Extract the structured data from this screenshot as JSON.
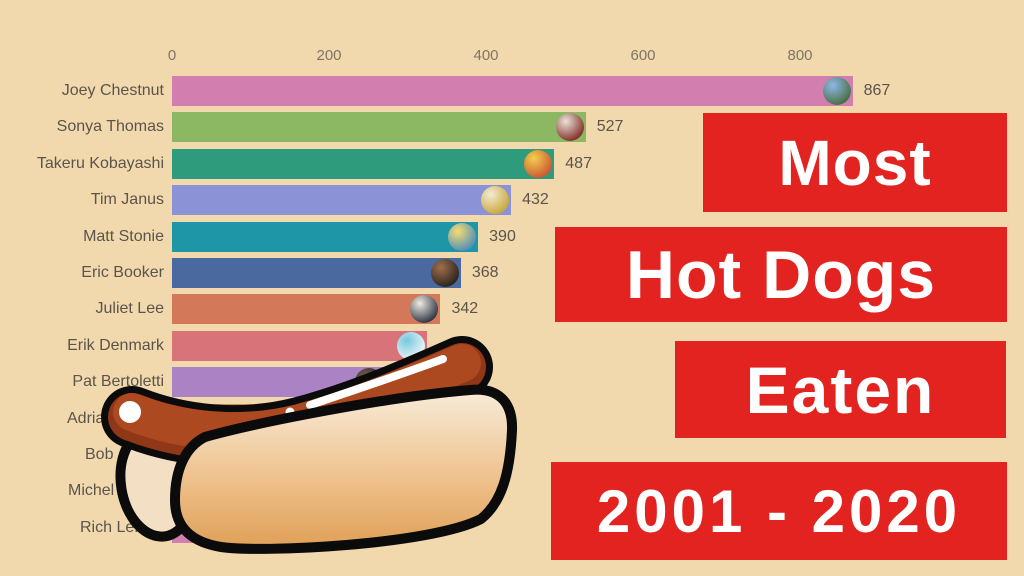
{
  "background_color": "#f2d9ad",
  "banner": {
    "color": "#e3231f",
    "text_color": "#ffffff",
    "lines": [
      {
        "text": "Most"
      },
      {
        "text": "Hot Dogs"
      },
      {
        "text": "Eaten"
      },
      {
        "text": "2001 - 2020"
      }
    ]
  },
  "text_colors": {
    "row_label": "#5a544c",
    "value_label": "#5a544c",
    "tick_label": "#7d7468"
  },
  "chart_data": {
    "type": "bar",
    "orientation": "horizontal",
    "title": "Most Hot Dogs Eaten 2001 - 2020",
    "xlabel": "",
    "ylabel": "",
    "grid": false,
    "x_ticks": [
      0,
      200,
      400,
      600,
      800
    ],
    "x_range": [
      0,
      1085
    ],
    "note": "rows are ranked top-to-bottom; lower rows are occluded by a cartoon hot-dog overlay so their values/labels are only partially visible",
    "rows": [
      {
        "label": "Joey Chestnut",
        "value": 867,
        "value_label": "867",
        "color": "#d27fb0",
        "avatar_colors": [
          "#8fb8e8",
          "#4b6f45"
        ]
      },
      {
        "label": "Sonya Thomas",
        "value": 527,
        "value_label": "527",
        "color": "#8cb763",
        "avatar_colors": [
          "#e9e3d9",
          "#86322c"
        ]
      },
      {
        "label": "Takeru Kobayashi",
        "value": 487,
        "value_label": "487",
        "color": "#2d9b7c",
        "avatar_colors": [
          "#f2cf4e",
          "#cd5a32"
        ]
      },
      {
        "label": "Tim Janus",
        "value": 432,
        "value_label": "432",
        "color": "#8b93d6",
        "avatar_colors": [
          "#f4ecd6",
          "#c9a93e"
        ]
      },
      {
        "label": "Matt Stonie",
        "value": 390,
        "value_label": "390",
        "color": "#1f96a8",
        "avatar_colors": [
          "#f6dc72",
          "#5291b8"
        ]
      },
      {
        "label": "Eric Booker",
        "value": 368,
        "value_label": "368",
        "color": "#49699f",
        "avatar_colors": [
          "#a06f4c",
          "#2c2520"
        ]
      },
      {
        "label": "Juliet Lee",
        "value": 342,
        "value_label": "342",
        "color": "#d3795a",
        "avatar_colors": [
          "#f0eae3",
          "#313846"
        ]
      },
      {
        "label": "Erik Denmark",
        "value": 325,
        "value_label": "",
        "color": "#d9737a",
        "avatar_colors": [
          "#74c9e0",
          "#eef4f5"
        ]
      },
      {
        "label": "Pat Bertoletti",
        "value": 271,
        "value_label": "",
        "color": "#ab82c4",
        "avatar_colors": [
          "#6f5d50",
          "#262320"
        ]
      },
      {
        "label": "Adrian",
        "value": 255,
        "value_label": "",
        "color": "#c98e55",
        "avatar_colors": [
          "#b9a893",
          "#57493c"
        ],
        "label_left": 67
      },
      {
        "label": "Bob",
        "value": 240,
        "value_label": "",
        "color": "#8cb763",
        "avatar_colors": [
          "#b9a893",
          "#57493c"
        ],
        "label_left": 85
      },
      {
        "label": "Michel",
        "value": 225,
        "value_label": "",
        "color": "#1f96a8",
        "avatar_colors": [
          "#b9a893",
          "#57493c"
        ],
        "label_left": 68
      },
      {
        "label": "Rich LeFe",
        "value": 210,
        "value_label": "",
        "color": "#d27fb0",
        "avatar_colors": [
          "#b9a893",
          "#57493c"
        ],
        "label_left": 80
      }
    ]
  },
  "overlay": {
    "hotdog_colors": {
      "outline": "#0b0b0b",
      "sausage": "#ad4920",
      "sausage_shade": "#8f3716",
      "bun_top": "#f9eedd",
      "bun_bottom": "#dd9a4f"
    }
  }
}
